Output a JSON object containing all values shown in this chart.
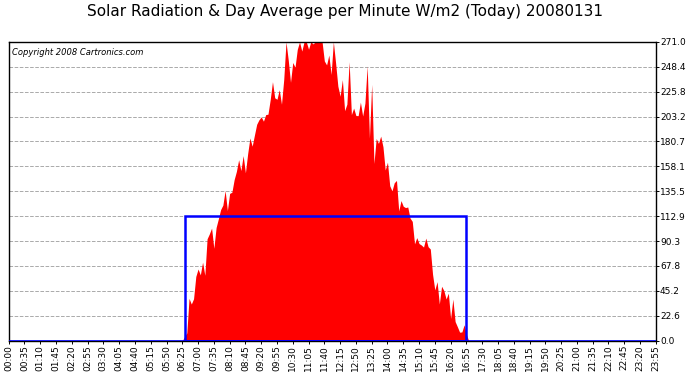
{
  "title": "Solar Radiation & Day Average per Minute W/m2 (Today) 20080131",
  "copyright": "Copyright 2008 Cartronics.com",
  "background_color": "#ffffff",
  "plot_bg_color": "#ffffff",
  "y_min": 0.0,
  "y_max": 271.0,
  "y_ticks": [
    0.0,
    22.6,
    45.2,
    67.8,
    90.3,
    112.9,
    135.5,
    158.1,
    180.7,
    203.2,
    225.8,
    248.4,
    271.0
  ],
  "bar_color": "#ff0000",
  "avg_box_color": "#0000ff",
  "avg_value": 112.9,
  "grid_color": "#aaaaaa",
  "grid_style": "--",
  "border_color": "#000000",
  "bottom_line_color": "#0000ff",
  "title_fontsize": 11,
  "tick_fontsize": 6.5,
  "copyright_fontsize": 6.0,
  "n_points": 288,
  "sunrise_idx": 78,
  "sunset_idx": 203,
  "peak_idx": 132,
  "x_tick_interval": 7,
  "x_label_step_minutes": 35
}
